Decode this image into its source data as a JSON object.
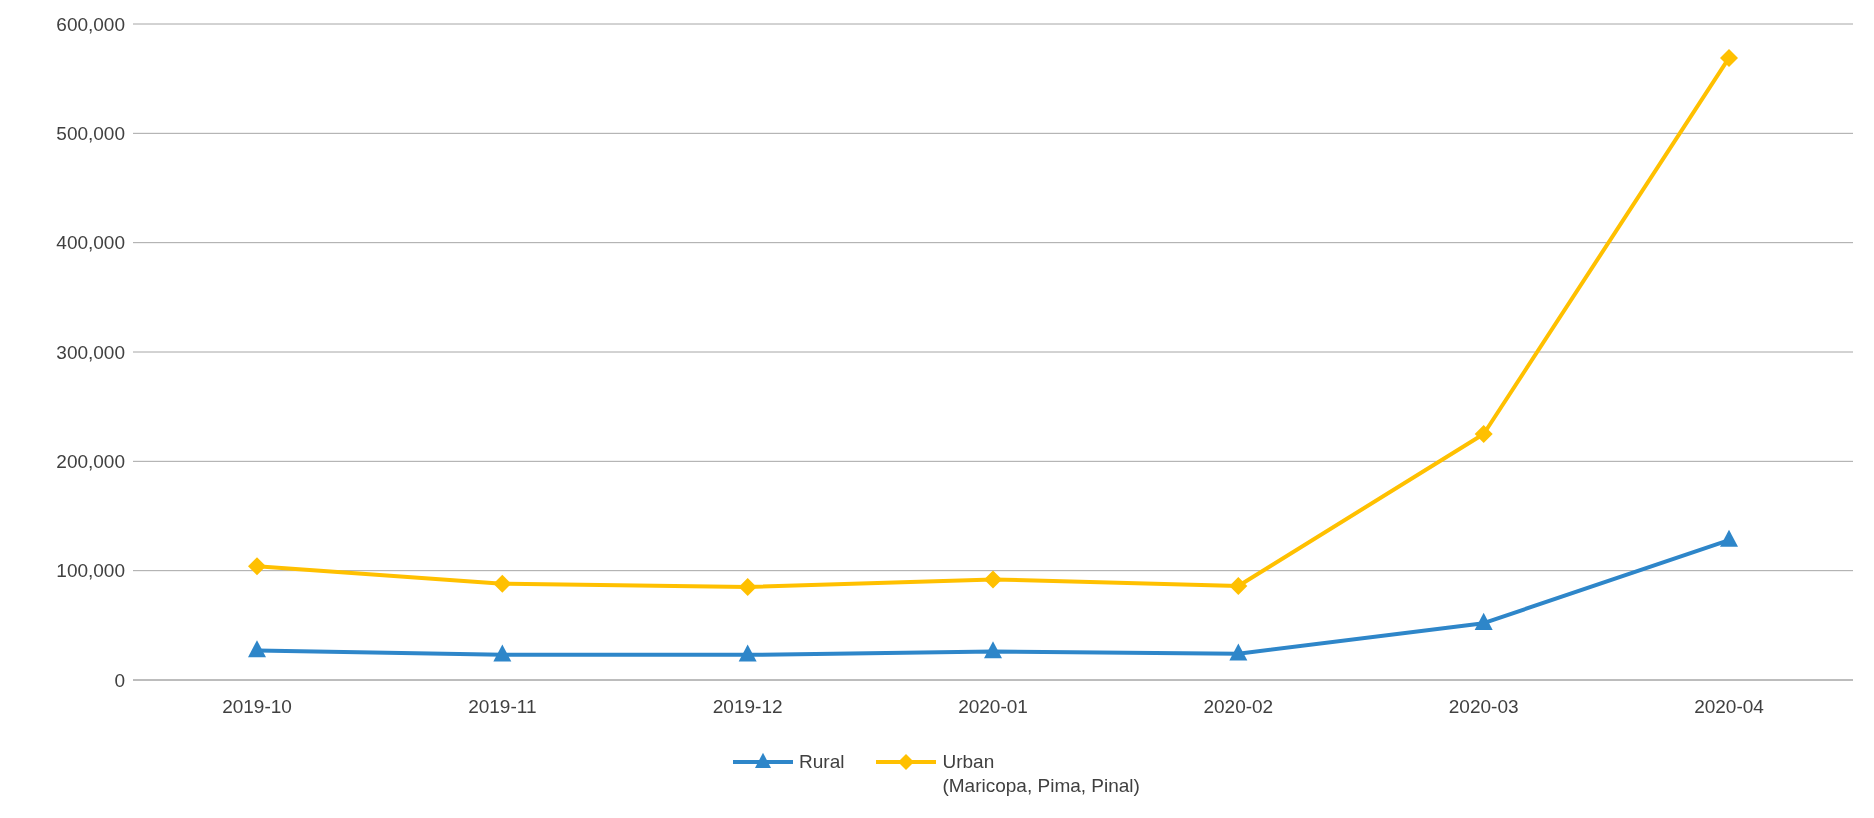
{
  "chart_data": {
    "type": "line",
    "categories": [
      "2019-10",
      "2019-11",
      "2019-12",
      "2020-01",
      "2020-02",
      "2020-03",
      "2020-04"
    ],
    "series": [
      {
        "name": "Rural",
        "color": "#2e86c9",
        "marker": "triangle",
        "values": [
          27000,
          23000,
          23000,
          26000,
          24000,
          52000,
          128000
        ]
      },
      {
        "name": "Urban\n(Maricopa, Pima, Pinal)",
        "color": "#ffc000",
        "marker": "diamond",
        "values": [
          104000,
          88000,
          85000,
          92000,
          86000,
          225000,
          569000
        ]
      }
    ],
    "ylim": [
      0,
      600000
    ],
    "yticks": [
      0,
      {
        "value": 100000,
        "label": "100,000"
      },
      {
        "value": 200000,
        "label": "200,000"
      },
      {
        "value": 300000,
        "label": "300,000"
      },
      {
        "value": 400000,
        "label": "400,000"
      },
      {
        "value": 500000,
        "label": "500,000"
      },
      {
        "value": 600000,
        "label": "600,000"
      }
    ],
    "grid": "y",
    "legend": "bottom",
    "line_style": "solid"
  }
}
